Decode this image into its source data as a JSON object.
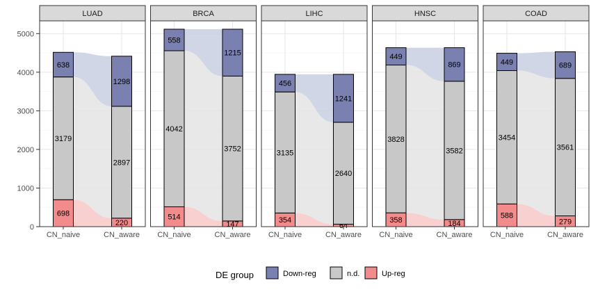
{
  "chart_data": {
    "type": "bar",
    "subtype": "stacked-alluvial-facets",
    "categories": [
      "CN_naive",
      "CN_aware"
    ],
    "panels": [
      {
        "name": "LUAD",
        "series": {
          "Up-reg": [
            698,
            220
          ],
          "n.d.": [
            3179,
            2897
          ],
          "Down-reg": [
            638,
            1298
          ]
        }
      },
      {
        "name": "BRCA",
        "series": {
          "Up-reg": [
            514,
            147
          ],
          "n.d.": [
            4042,
            3752
          ],
          "Down-reg": [
            558,
            1215
          ]
        }
      },
      {
        "name": "LIHC",
        "series": {
          "Up-reg": [
            354,
            64
          ],
          "n.d.": [
            3135,
            2640
          ],
          "Down-reg": [
            456,
            1241
          ]
        }
      },
      {
        "name": "HNSC",
        "series": {
          "Up-reg": [
            358,
            184
          ],
          "n.d.": [
            3828,
            3582
          ],
          "Down-reg": [
            449,
            869
          ]
        }
      },
      {
        "name": "COAD",
        "series": {
          "Up-reg": [
            588,
            279
          ],
          "n.d.": [
            3454,
            3561
          ],
          "Down-reg": [
            449,
            689
          ]
        }
      }
    ],
    "stack_order": [
      "Up-reg",
      "n.d.",
      "Down-reg"
    ],
    "ylim": [
      0,
      5330
    ],
    "yticks": [
      0,
      1000,
      2000,
      3000,
      4000,
      5000
    ],
    "grid": true,
    "legend": {
      "title": "DE group",
      "position": "bottom",
      "entries": [
        {
          "name": "Down-reg",
          "color": "#7a80b0"
        },
        {
          "name": "n.d.",
          "color": "#c8c8c8"
        },
        {
          "name": "Up-reg",
          "color": "#f28b8b"
        }
      ]
    },
    "colors": {
      "Down-reg": "#7a80b0",
      "n.d.": "#c8c8c8",
      "Up-reg": "#f28b8b",
      "flow_Down-reg": "#c9cfe3",
      "flow_n.d.": "#e4e4e4",
      "flow_Up-reg": "#f7c8c8"
    }
  }
}
